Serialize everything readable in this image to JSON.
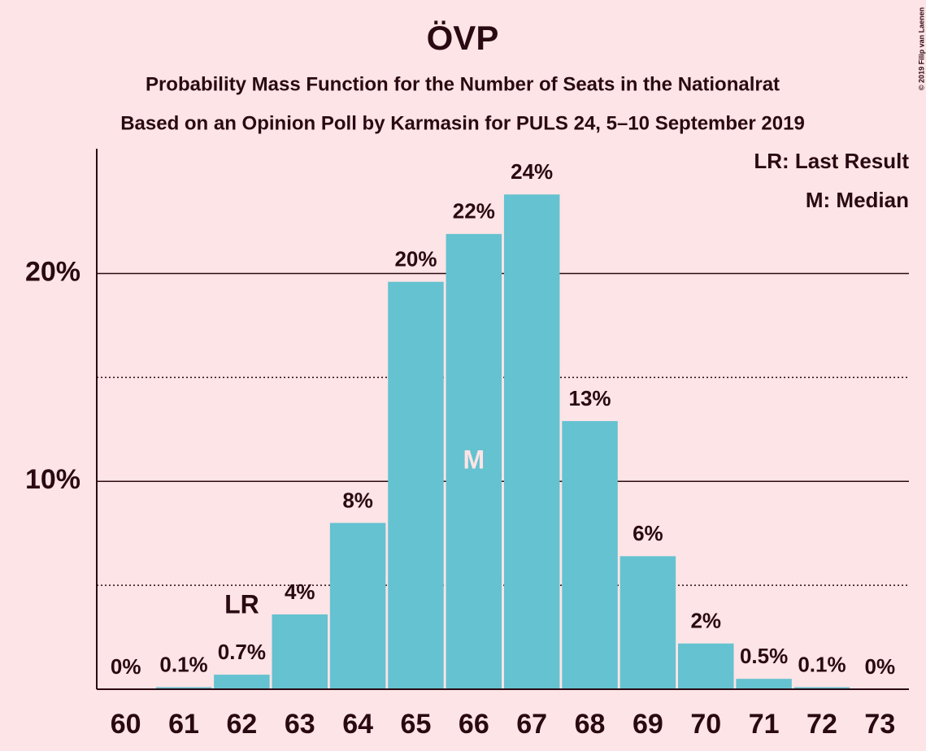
{
  "chart_data": {
    "type": "bar",
    "title": "ÖVP",
    "subtitle": "Probability Mass Function for the Number of Seats in the Nationalrat",
    "subtitle2": "Based on an Opinion Poll by Karmasin for PULS 24, 5–10 September 2019",
    "categories": [
      60,
      61,
      62,
      63,
      64,
      65,
      66,
      67,
      68,
      69,
      70,
      71,
      72,
      73
    ],
    "values": [
      0,
      0.1,
      0.7,
      3.6,
      8.0,
      19.6,
      21.9,
      23.8,
      12.9,
      6.4,
      2.2,
      0.5,
      0.1,
      0
    ],
    "value_labels": [
      "0%",
      "0.1%",
      "0.7%",
      "4%",
      "8%",
      "20%",
      "22%",
      "24%",
      "13%",
      "6%",
      "2%",
      "0.5%",
      "0.1%",
      "0%"
    ],
    "color": "#65c2d0",
    "ylim": [
      0,
      26
    ],
    "yticks": [
      {
        "value": 10,
        "label": "10%"
      },
      {
        "value": 20,
        "label": "20%"
      }
    ],
    "minor_yticks": [
      5,
      15
    ],
    "grid": true,
    "annotations": [
      {
        "text": "LR",
        "x": 62,
        "placement": "above"
      },
      {
        "text": "M",
        "x": 66,
        "placement": "inside"
      }
    ],
    "legend": [
      "LR: Last Result",
      "M: Median"
    ],
    "legend_position": "top-right",
    "copyright": "© 2019 Filip van Laenen"
  }
}
